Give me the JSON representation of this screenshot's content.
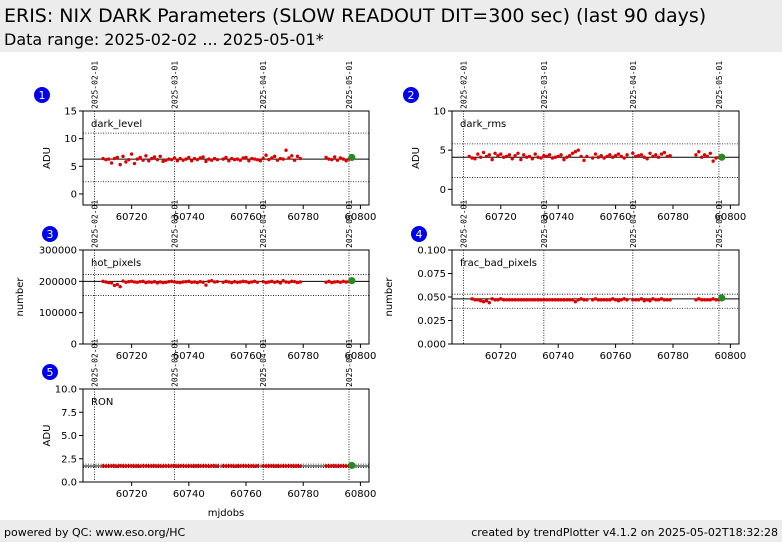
{
  "header": {
    "title": "ERIS: NIX DARK Parameters (SLOW READOUT DIT=300 sec) (last 90 days)",
    "subtitle": "Data range: 2025-02-02 ... 2025-05-01*"
  },
  "footer": {
    "left": "powered by QC: www.eso.org/HC",
    "right": "created by trendPlotter v4.1.2 on 2025-05-02T18:32:28"
  },
  "colors": {
    "points": "#dd0000",
    "latest": "#228b22",
    "badge": "#0000ee"
  },
  "date_markers": [
    {
      "label": "2025-02-01",
      "mjd": 60707
    },
    {
      "label": "2025-03-01",
      "mjd": 60735
    },
    {
      "label": "2025-04-01",
      "mjd": 60766
    },
    {
      "label": "2025-05-01",
      "mjd": 60796
    }
  ],
  "chart_data": [
    {
      "id": "1",
      "type": "scatter",
      "name": "dark_level",
      "ylabel": "ADU",
      "xlabel": "",
      "xlim": [
        60703,
        60803
      ],
      "ylim": [
        -2,
        15
      ],
      "xticks": [
        "60720",
        "60740",
        "60760",
        "60780",
        "60800"
      ],
      "yticks": [
        "0",
        "5",
        "10",
        "15"
      ],
      "median": 6.3,
      "band": [
        2.2,
        11.0
      ],
      "x": [
        60710,
        60711,
        60712,
        60713,
        60714,
        60715,
        60716,
        60717,
        60718,
        60719,
        60720,
        60721,
        60722,
        60723,
        60724,
        60725,
        60726,
        60727,
        60728,
        60729,
        60730,
        60731,
        60732,
        60733,
        60734,
        60735,
        60736,
        60737,
        60738,
        60739,
        60740,
        60741,
        60742,
        60743,
        60744,
        60745,
        60746,
        60747,
        60748,
        60749,
        60750,
        60752,
        60753,
        60754,
        60755,
        60756,
        60757,
        60758,
        60759,
        60760,
        60761,
        60762,
        60763,
        60764,
        60765,
        60766,
        60767,
        60768,
        60769,
        60770,
        60771,
        60772,
        60773,
        60774,
        60775,
        60776,
        60777,
        60778,
        60779,
        60788,
        60789,
        60790,
        60791,
        60792,
        60793,
        60794,
        60795,
        60796
      ],
      "y": [
        6.4,
        6.2,
        6.3,
        5.6,
        6.4,
        6.6,
        5.3,
        6.8,
        5.8,
        6.2,
        7.2,
        5.5,
        6.3,
        6.6,
        6.1,
        6.9,
        6.0,
        6.4,
        6.7,
        6.2,
        6.8,
        5.9,
        6.1,
        6.3,
        6.2,
        6.5,
        6.0,
        6.4,
        6.1,
        6.3,
        6.6,
        6.0,
        6.4,
        6.2,
        6.5,
        6.7,
        5.9,
        6.3,
        6.1,
        6.4,
        6.2,
        6.3,
        6.6,
        6.0,
        6.4,
        6.2,
        6.3,
        6.1,
        6.5,
        6.6,
        6.0,
        6.4,
        6.3,
        6.2,
        6.0,
        6.4,
        7.0,
        6.2,
        6.5,
        6.8,
        6.1,
        6.4,
        6.3,
        7.9,
        6.5,
        6.9,
        6.1,
        6.8,
        6.4,
        6.6,
        6.3,
        6.2,
        6.7,
        6.1,
        6.5,
        6.3,
        6.0,
        6.3
      ],
      "latest": [
        60797,
        6.6
      ]
    },
    {
      "id": "2",
      "type": "scatter",
      "name": "dark_rms",
      "ylabel": "ADU",
      "xlabel": "",
      "xlim": [
        60703,
        60803
      ],
      "ylim": [
        -2,
        10
      ],
      "xticks": [
        "60720",
        "60740",
        "60760",
        "60780",
        "60800"
      ],
      "yticks": [
        "0",
        "5",
        "10"
      ],
      "median": 4.1,
      "band": [
        1.5,
        5.8
      ],
      "x": [
        60709,
        60710,
        60711,
        60712,
        60713,
        60714,
        60715,
        60716,
        60717,
        60718,
        60719,
        60720,
        60721,
        60722,
        60723,
        60724,
        60725,
        60726,
        60727,
        60728,
        60729,
        60730,
        60731,
        60732,
        60733,
        60734,
        60735,
        60736,
        60737,
        60738,
        60739,
        60740,
        60741,
        60742,
        60743,
        60744,
        60745,
        60746,
        60747,
        60748,
        60749,
        60750,
        60752,
        60753,
        60754,
        60755,
        60756,
        60757,
        60758,
        60759,
        60760,
        60761,
        60762,
        60763,
        60764,
        60766,
        60767,
        60768,
        60769,
        60770,
        60771,
        60772,
        60773,
        60774,
        60775,
        60776,
        60777,
        60778,
        60779,
        60788,
        60789,
        60790,
        60791,
        60792,
        60793,
        60794,
        60795,
        60796
      ],
      "y": [
        4.2,
        4.0,
        3.9,
        4.5,
        4.1,
        4.7,
        4.2,
        4.4,
        3.8,
        4.6,
        4.3,
        4.5,
        4.1,
        4.2,
        4.4,
        3.9,
        4.3,
        4.6,
        3.8,
        4.4,
        4.1,
        4.2,
        3.9,
        4.5,
        4.1,
        4.0,
        4.3,
        4.2,
        4.4,
        4.0,
        4.1,
        4.2,
        4.4,
        3.8,
        4.1,
        4.3,
        4.6,
        4.8,
        5.0,
        4.2,
        3.7,
        4.2,
        4.0,
        4.5,
        4.1,
        4.3,
        4.0,
        4.2,
        4.4,
        4.1,
        4.3,
        4.5,
        4.2,
        4.0,
        4.4,
        4.6,
        4.2,
        4.3,
        4.4,
        4.1,
        3.9,
        4.6,
        4.2,
        4.4,
        4.1,
        4.5,
        4.7,
        4.2,
        4.3,
        4.4,
        4.8,
        4.1,
        4.4,
        4.2,
        4.6,
        3.6,
        4.0,
        4.1
      ],
      "latest": [
        60797,
        4.1
      ]
    },
    {
      "id": "3",
      "type": "scatter",
      "name": "hot_pixels",
      "ylabel": "number",
      "xlabel": "",
      "xlim": [
        60703,
        60803
      ],
      "ylim": [
        0,
        300000
      ],
      "xticks": [
        "60720",
        "60740",
        "60760",
        "60780",
        "60800"
      ],
      "yticks": [
        "0",
        "100000",
        "200000",
        "300000"
      ],
      "median": 200000,
      "band": [
        155000,
        222000
      ],
      "x": [
        60710,
        60711,
        60712,
        60713,
        60714,
        60715,
        60716,
        60717,
        60718,
        60719,
        60720,
        60721,
        60722,
        60723,
        60724,
        60725,
        60726,
        60727,
        60728,
        60729,
        60730,
        60731,
        60732,
        60733,
        60734,
        60735,
        60736,
        60737,
        60738,
        60739,
        60740,
        60741,
        60742,
        60743,
        60744,
        60745,
        60746,
        60747,
        60748,
        60749,
        60750,
        60752,
        60753,
        60754,
        60755,
        60756,
        60757,
        60758,
        60759,
        60760,
        60761,
        60762,
        60763,
        60764,
        60766,
        60767,
        60768,
        60769,
        60770,
        60771,
        60772,
        60773,
        60774,
        60775,
        60776,
        60777,
        60778,
        60779,
        60788,
        60789,
        60790,
        60791,
        60792,
        60793,
        60794,
        60795,
        60796
      ],
      "y": [
        200000,
        198000,
        196000,
        195000,
        187000,
        190000,
        183000,
        201000,
        197000,
        199000,
        200000,
        198000,
        197000,
        199000,
        200000,
        196000,
        198000,
        197000,
        199000,
        195000,
        198000,
        196000,
        197000,
        199000,
        200000,
        198000,
        197000,
        196000,
        198000,
        199000,
        200000,
        197000,
        198000,
        196000,
        199000,
        197000,
        188000,
        200000,
        202000,
        198000,
        199000,
        197000,
        200000,
        198000,
        196000,
        199000,
        197000,
        198000,
        200000,
        199000,
        196000,
        198000,
        200000,
        197000,
        199000,
        196000,
        198000,
        200000,
        197000,
        199000,
        195000,
        202000,
        198000,
        197000,
        200000,
        199000,
        196000,
        198000,
        197000,
        200000,
        196000,
        198000,
        199000,
        197000,
        200000,
        198000,
        199000
      ],
      "latest": [
        60797,
        202000
      ]
    },
    {
      "id": "4",
      "type": "scatter",
      "name": "frac_bad_pixels",
      "ylabel": "number",
      "xlabel": "",
      "xlim": [
        60703,
        60803
      ],
      "ylim": [
        0,
        0.1
      ],
      "xticks": [
        "60720",
        "60740",
        "60760",
        "60780",
        "60800"
      ],
      "yticks": [
        "0.000",
        "0.025",
        "0.050",
        "0.075",
        "0.100"
      ],
      "median": 0.048,
      "band": [
        0.038,
        0.053
      ],
      "x": [
        60710,
        60711,
        60712,
        60713,
        60714,
        60715,
        60716,
        60717,
        60718,
        60719,
        60720,
        60721,
        60722,
        60723,
        60724,
        60725,
        60726,
        60727,
        60728,
        60729,
        60730,
        60731,
        60732,
        60733,
        60734,
        60735,
        60736,
        60737,
        60738,
        60739,
        60740,
        60741,
        60742,
        60743,
        60744,
        60745,
        60746,
        60747,
        60748,
        60749,
        60750,
        60752,
        60753,
        60754,
        60755,
        60756,
        60757,
        60758,
        60759,
        60760,
        60761,
        60762,
        60763,
        60764,
        60766,
        60767,
        60768,
        60769,
        60770,
        60771,
        60772,
        60773,
        60774,
        60775,
        60776,
        60777,
        60778,
        60779,
        60788,
        60789,
        60790,
        60791,
        60792,
        60793,
        60794,
        60795,
        60796
      ],
      "y": [
        0.048,
        0.047,
        0.047,
        0.046,
        0.045,
        0.046,
        0.044,
        0.048,
        0.047,
        0.047,
        0.048,
        0.047,
        0.047,
        0.047,
        0.047,
        0.047,
        0.047,
        0.047,
        0.047,
        0.047,
        0.047,
        0.047,
        0.047,
        0.047,
        0.047,
        0.047,
        0.047,
        0.047,
        0.047,
        0.047,
        0.047,
        0.047,
        0.047,
        0.047,
        0.047,
        0.047,
        0.045,
        0.047,
        0.048,
        0.047,
        0.047,
        0.047,
        0.048,
        0.047,
        0.047,
        0.047,
        0.047,
        0.047,
        0.048,
        0.047,
        0.046,
        0.047,
        0.048,
        0.047,
        0.047,
        0.047,
        0.047,
        0.048,
        0.046,
        0.047,
        0.046,
        0.048,
        0.047,
        0.047,
        0.048,
        0.047,
        0.047,
        0.047,
        0.047,
        0.048,
        0.047,
        0.047,
        0.047,
        0.047,
        0.048,
        0.047,
        0.047
      ],
      "latest": [
        60797,
        0.049
      ]
    },
    {
      "id": "5",
      "type": "scatter",
      "name": "RON",
      "ylabel": "ADU",
      "xlabel": "mjdobs",
      "xlim": [
        60703,
        60803
      ],
      "ylim": [
        0,
        10
      ],
      "xticks": [
        "60720",
        "60740",
        "60760",
        "60780",
        "60800"
      ],
      "yticks": [
        "0.0",
        "2.5",
        "5.0",
        "7.5",
        "10.0"
      ],
      "median": 1.72,
      "band": [
        1.55,
        1.92
      ],
      "x": [
        60710,
        60711,
        60712,
        60713,
        60714,
        60715,
        60716,
        60717,
        60718,
        60719,
        60720,
        60721,
        60722,
        60723,
        60724,
        60725,
        60726,
        60727,
        60728,
        60729,
        60730,
        60731,
        60732,
        60733,
        60734,
        60735,
        60736,
        60737,
        60738,
        60739,
        60740,
        60741,
        60742,
        60743,
        60744,
        60745,
        60746,
        60747,
        60748,
        60749,
        60750,
        60752,
        60753,
        60754,
        60755,
        60756,
        60757,
        60758,
        60759,
        60760,
        60761,
        60762,
        60763,
        60764,
        60766,
        60767,
        60768,
        60769,
        60770,
        60771,
        60772,
        60773,
        60774,
        60775,
        60776,
        60777,
        60778,
        60779,
        60788,
        60789,
        60790,
        60791,
        60792,
        60793,
        60794,
        60795,
        60796
      ],
      "y": [
        1.72,
        1.7,
        1.71,
        1.73,
        1.72,
        1.7,
        1.74,
        1.72,
        1.71,
        1.73,
        1.72,
        1.71,
        1.72,
        1.7,
        1.73,
        1.72,
        1.71,
        1.72,
        1.73,
        1.71,
        1.72,
        1.7,
        1.72,
        1.71,
        1.73,
        1.72,
        1.71,
        1.72,
        1.73,
        1.7,
        1.72,
        1.71,
        1.72,
        1.73,
        1.72,
        1.71,
        1.72,
        1.7,
        1.73,
        1.72,
        1.71,
        1.72,
        1.71,
        1.73,
        1.72,
        1.7,
        1.72,
        1.71,
        1.73,
        1.72,
        1.71,
        1.72,
        1.7,
        1.73,
        1.72,
        1.71,
        1.72,
        1.73,
        1.71,
        1.72,
        1.7,
        1.72,
        1.71,
        1.73,
        1.72,
        1.71,
        1.72,
        1.7,
        1.72,
        1.71,
        1.73,
        1.72,
        1.71,
        1.72,
        1.73,
        1.71,
        1.72
      ],
      "latest": [
        60797,
        1.78
      ]
    }
  ]
}
